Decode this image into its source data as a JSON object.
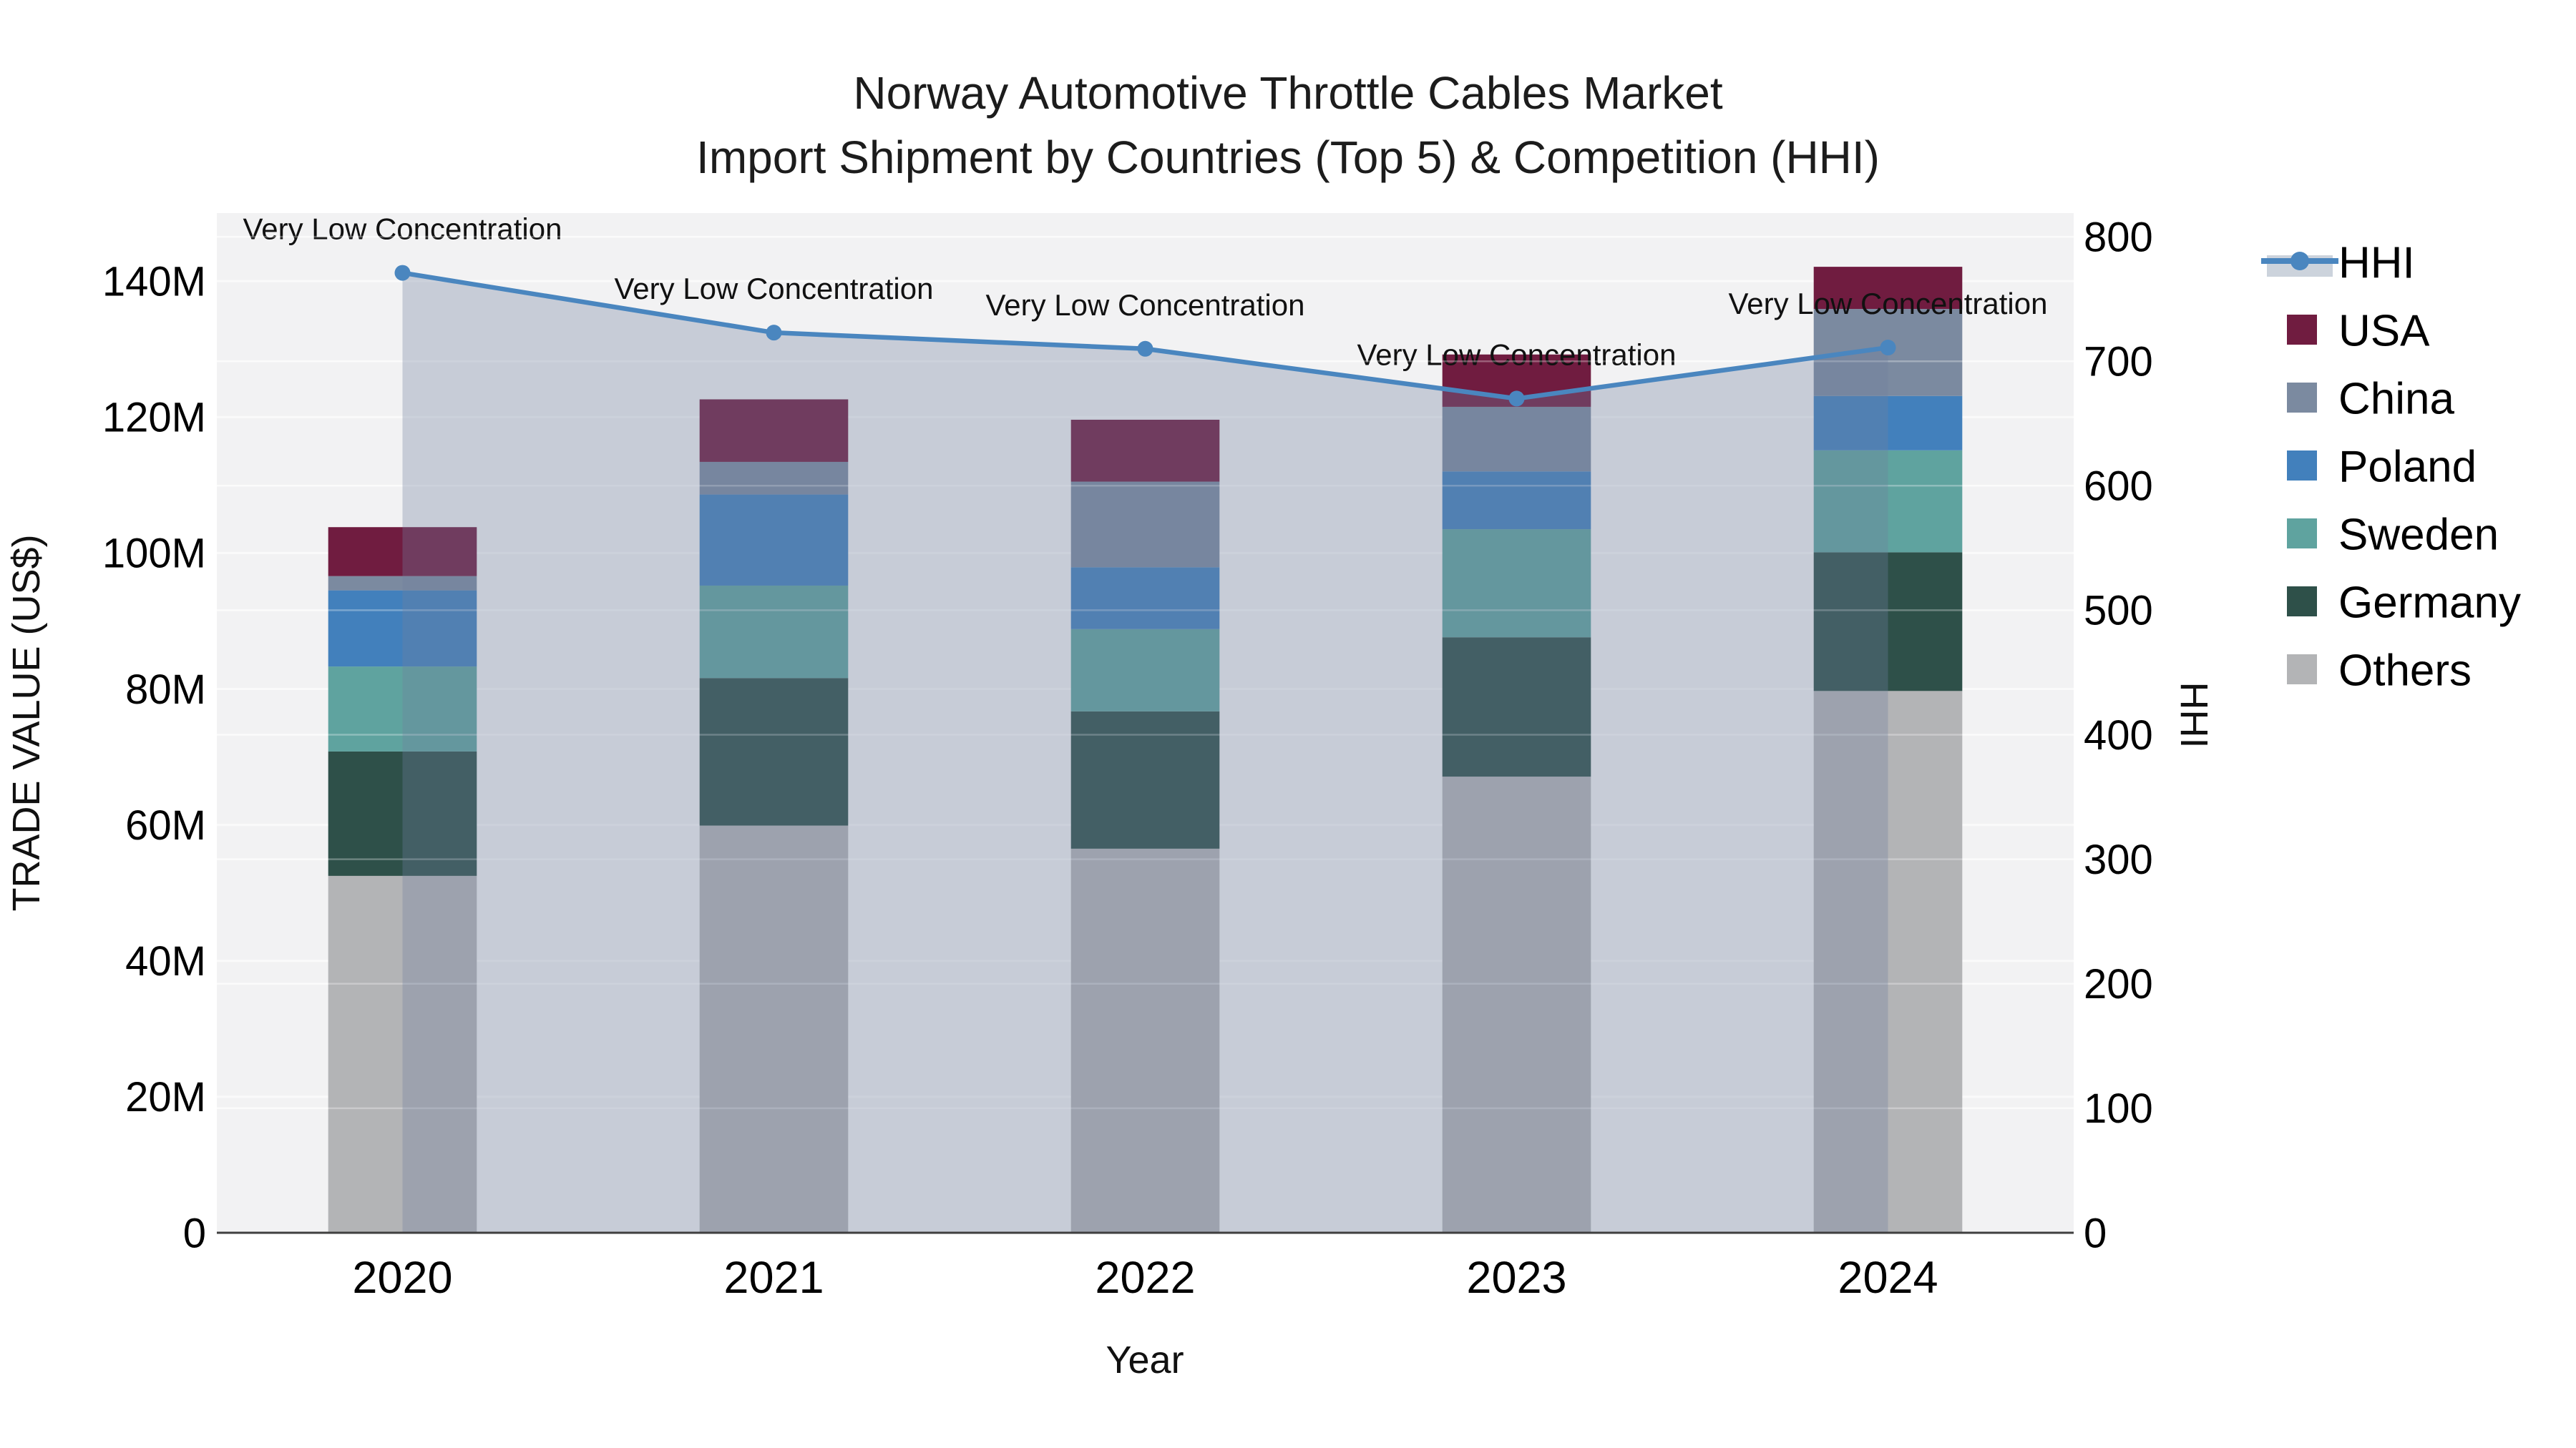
{
  "title": {
    "line1": "Norway Automotive Throttle Cables Market",
    "line2": "Import Shipment by Countries (Top 5) & Competition (HHI)"
  },
  "axes": {
    "x": {
      "label": "Year",
      "categories": [
        "2020",
        "2021",
        "2022",
        "2023",
        "2024"
      ]
    },
    "y_left": {
      "label": "TRADE VALUE (US$)",
      "tick_labels": [
        "0",
        "20M",
        "40M",
        "60M",
        "80M",
        "100M",
        "120M",
        "140M"
      ]
    },
    "y_right": {
      "label": "HHI",
      "tick_labels": [
        "0",
        "100",
        "200",
        "300",
        "400",
        "500",
        "600",
        "700",
        "800"
      ]
    }
  },
  "legend": {
    "items": [
      {
        "label": "HHI",
        "type": "line"
      },
      {
        "label": "USA",
        "type": "swatch",
        "color": "#701c40"
      },
      {
        "label": "China",
        "type": "swatch",
        "color": "#7b8aa0"
      },
      {
        "label": "Poland",
        "type": "swatch",
        "color": "#4280bc"
      },
      {
        "label": "Sweden",
        "type": "swatch",
        "color": "#5fa39f"
      },
      {
        "label": "Germany",
        "type": "swatch",
        "color": "#2e5049"
      },
      {
        "label": "Others",
        "type": "swatch",
        "color": "#b3b4b6"
      }
    ]
  },
  "chart_data": {
    "type": "bar+line combo (stacked bars left axis, HHI line right axis)",
    "title": "Norway Automotive Throttle Cables Market — Import Shipment by Countries (Top 5) & Competition (HHI)",
    "categories": [
      "2020",
      "2021",
      "2022",
      "2023",
      "2024"
    ],
    "bar_unit": "Trade value, US$ millions (left axis)",
    "stack_order_bottom_to_top": [
      "Others",
      "Germany",
      "Sweden",
      "Poland",
      "China",
      "USA"
    ],
    "series": [
      {
        "name": "Others",
        "color": "#b3b4b6",
        "values": [
          52.5,
          59.9,
          56.5,
          67.1,
          79.7
        ]
      },
      {
        "name": "Germany",
        "color": "#2e5049",
        "values": [
          18.3,
          21.7,
          20.2,
          20.5,
          20.4
        ]
      },
      {
        "name": "Sweden",
        "color": "#5fa39f",
        "values": [
          12.5,
          13.6,
          12.1,
          15.9,
          15.0
        ]
      },
      {
        "name": "Poland",
        "color": "#4280bc",
        "values": [
          11.2,
          13.4,
          9.1,
          8.5,
          8.0
        ]
      },
      {
        "name": "China",
        "color": "#7b8aa0",
        "values": [
          2.1,
          4.8,
          12.6,
          9.5,
          12.8
        ]
      },
      {
        "name": "USA",
        "color": "#701c40",
        "values": [
          7.2,
          9.2,
          9.1,
          7.7,
          6.2
        ]
      }
    ],
    "bar_totals": [
      103.8,
      122.6,
      119.6,
      129.2,
      142.1
    ],
    "line": {
      "name": "HHI",
      "values": [
        771,
        723,
        710,
        670,
        711
      ],
      "color": "#4a86bf",
      "area_fill_color": "#71809e",
      "area_fill_opacity": 0.33,
      "point_annotation": "Very Low Concentration"
    },
    "ylim_left": [
      0,
      150
    ],
    "ylim_right": [
      0,
      819
    ],
    "y_left_ticks_M": [
      0,
      20,
      40,
      60,
      80,
      100,
      120,
      140
    ],
    "y_right_ticks": [
      0,
      100,
      200,
      300,
      400,
      500,
      600,
      700,
      800
    ],
    "xlabel": "Year",
    "ylabel_left": "TRADE VALUE (US$)",
    "ylabel_right": "HHI",
    "grid": "horizontal gridlines for both axes, white on light-gray plot background",
    "legend_position": "outside right, top"
  },
  "colors": {
    "figure_bg": "#ffffff",
    "plot_bg": "#f2f2f3",
    "gridline": "#fafafa",
    "axis_line": "#3f3f3f",
    "hhi_line": "#4a86bf",
    "area_fill": "#71809e",
    "legend_hhi_band": "#ccd3dc"
  }
}
